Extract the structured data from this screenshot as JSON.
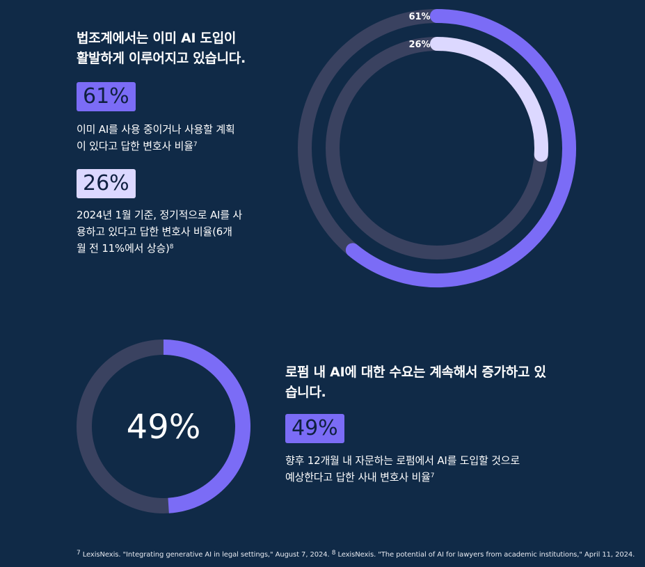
{
  "colors": {
    "background": "#102a47",
    "track": "#3a4260",
    "accent_purple": "#7b6cf6",
    "accent_light": "#dcd8ff"
  },
  "section1": {
    "title_line1": "법조계에서는 이미 AI 도입이",
    "title_line2": "활발하게 이루어지고 있습니다.",
    "stat1": {
      "value": "61%",
      "desc_line1": "이미 AI를 사용 중이거나 사용할 계획",
      "desc_line2": "이 있다고 답한 변호사 비율",
      "footnote_ref": "7"
    },
    "stat2": {
      "value": "26%",
      "desc_line1": "2024년 1월 기준, 정기적으로 AI를 사",
      "desc_line2": "용하고 있다고 답한 변호사 비율(6개",
      "desc_line3": "월 전 11%에서 상승)",
      "footnote_ref": "8"
    }
  },
  "section2": {
    "title_line1": "로펌 내 AI에 대한 수요는 계속해서 증가하고 있",
    "title_line2": "습니다.",
    "stat": {
      "value": "49%",
      "desc_line1": "향후 12개월 내 자문하는 로펌에서 AI를 도입할 것으로",
      "desc_line2": "예상한다고 답한 사내 변호사 비율",
      "footnote_ref": "7"
    }
  },
  "footnotes": {
    "ref7": "7",
    "text7": "LexisNexis. \"Integrating generative AI in legal settings,\" August 7, 2024.",
    "ref8": "8",
    "text8": "LexisNexis. \"The potential of AI for lawyers from academic institutions,\" April 11, 2024."
  },
  "chart_data": [
    {
      "type": "pie",
      "style": "concentric-donut",
      "series": [
        {
          "name": "outer",
          "label": "61%",
          "value": 61,
          "max": 100,
          "color": "#7b6cf6"
        },
        {
          "name": "inner",
          "label": "26%",
          "value": 26,
          "max": 100,
          "color": "#dcd8ff"
        }
      ]
    },
    {
      "type": "pie",
      "style": "donut",
      "series": [
        {
          "name": "main",
          "label": "49%",
          "value": 49,
          "max": 100,
          "color": "#7b6cf6"
        }
      ],
      "center_label": "49%"
    }
  ]
}
